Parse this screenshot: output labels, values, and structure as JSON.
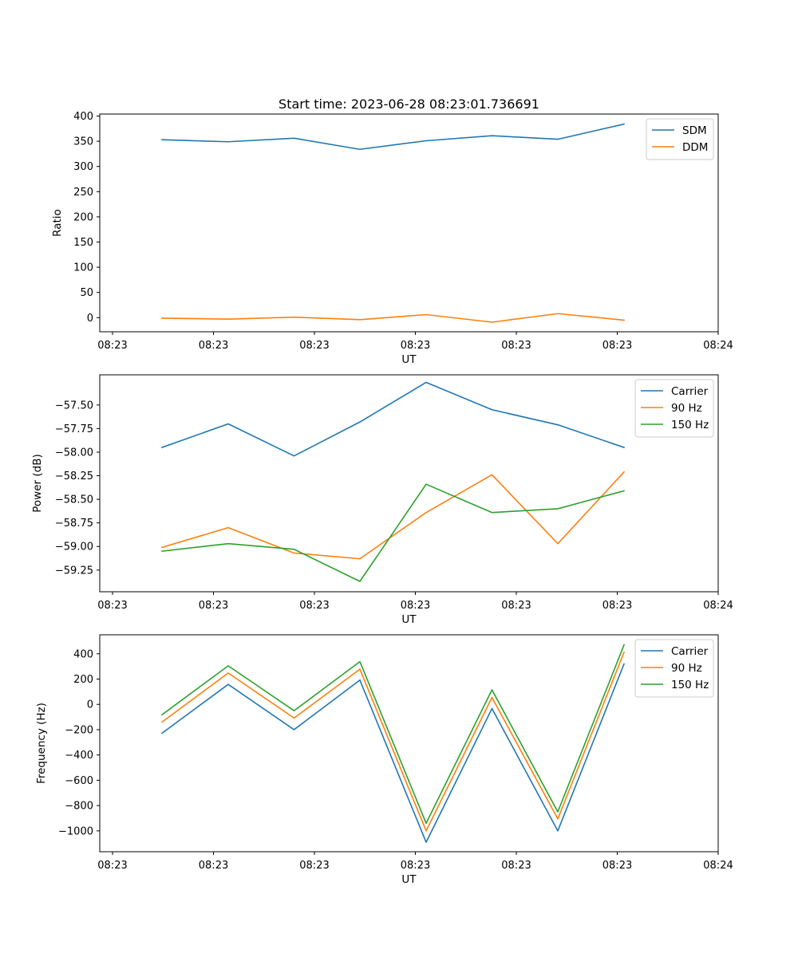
{
  "chart_data": [
    {
      "type": "line",
      "title": "Start time: 2023-06-28 08:23:01.736691",
      "xlabel": "UT",
      "ylabel": "Ratio",
      "x_tick_labels": [
        "08:23",
        "08:23",
        "08:23",
        "08:23",
        "08:23",
        "08:23",
        "08:24"
      ],
      "y_ticks": [
        0,
        50,
        100,
        150,
        200,
        250,
        300,
        350,
        400
      ],
      "y_tick_labels": [
        "0",
        "50",
        "100",
        "150",
        "200",
        "250",
        "300",
        "350",
        "400"
      ],
      "ylim": [
        -28,
        404
      ],
      "legend_position": "top-right",
      "grid": false,
      "series": [
        {
          "name": "SDM",
          "color": "#1f77b4",
          "values": [
            353,
            349,
            356,
            334,
            351,
            361,
            354,
            384
          ]
        },
        {
          "name": "DDM",
          "color": "#ff7f0e",
          "values": [
            -1,
            -3,
            1,
            -4,
            6,
            -9,
            8,
            -5
          ]
        }
      ]
    },
    {
      "type": "line",
      "title": "",
      "xlabel": "UT",
      "ylabel": "Power (dB)",
      "x_tick_labels": [
        "08:23",
        "08:23",
        "08:23",
        "08:23",
        "08:23",
        "08:23",
        "08:24"
      ],
      "y_ticks": [
        -59.25,
        -59.0,
        -58.75,
        -58.5,
        -58.25,
        -58.0,
        -57.75,
        -57.5
      ],
      "y_tick_labels": [
        "−59.25",
        "−59.00",
        "−58.75",
        "−58.50",
        "−58.25",
        "−58.00",
        "−57.75",
        "−57.50"
      ],
      "ylim": [
        -59.48,
        -57.18
      ],
      "legend_position": "top-right",
      "grid": false,
      "series": [
        {
          "name": "Carrier",
          "color": "#1f77b4",
          "values": [
            -57.95,
            -57.7,
            -58.04,
            -57.68,
            -57.26,
            -57.55,
            -57.71,
            -57.95
          ]
        },
        {
          "name": "90 Hz",
          "color": "#ff7f0e",
          "values": [
            -59.01,
            -58.8,
            -59.07,
            -59.13,
            -58.64,
            -58.24,
            -58.97,
            -58.21
          ]
        },
        {
          "name": "150 Hz",
          "color": "#2ca02c",
          "values": [
            -59.05,
            -58.97,
            -59.03,
            -59.37,
            -58.34,
            -58.64,
            -58.6,
            -58.41
          ]
        }
      ]
    },
    {
      "type": "line",
      "title": "",
      "xlabel": "UT",
      "ylabel": "Frequency (Hz)",
      "x_tick_labels": [
        "08:23",
        "08:23",
        "08:23",
        "08:23",
        "08:23",
        "08:23",
        "08:24"
      ],
      "y_ticks": [
        -1000,
        -800,
        -600,
        -400,
        -200,
        0,
        200,
        400
      ],
      "y_tick_labels": [
        "−1000",
        "−800",
        "−600",
        "−400",
        "−200",
        "0",
        "200",
        "400"
      ],
      "ylim": [
        -1165,
        550
      ],
      "legend_position": "top-right",
      "grid": false,
      "series": [
        {
          "name": "Carrier",
          "color": "#1f77b4",
          "values": [
            -228,
            158,
            -200,
            192,
            -1090,
            -33,
            -1000,
            320
          ]
        },
        {
          "name": "90 Hz",
          "color": "#ff7f0e",
          "values": [
            -140,
            248,
            -108,
            278,
            -1000,
            55,
            -905,
            412
          ]
        },
        {
          "name": "150 Hz",
          "color": "#2ca02c",
          "values": [
            -82,
            305,
            -50,
            338,
            -940,
            115,
            -850,
            470
          ]
        }
      ]
    }
  ]
}
